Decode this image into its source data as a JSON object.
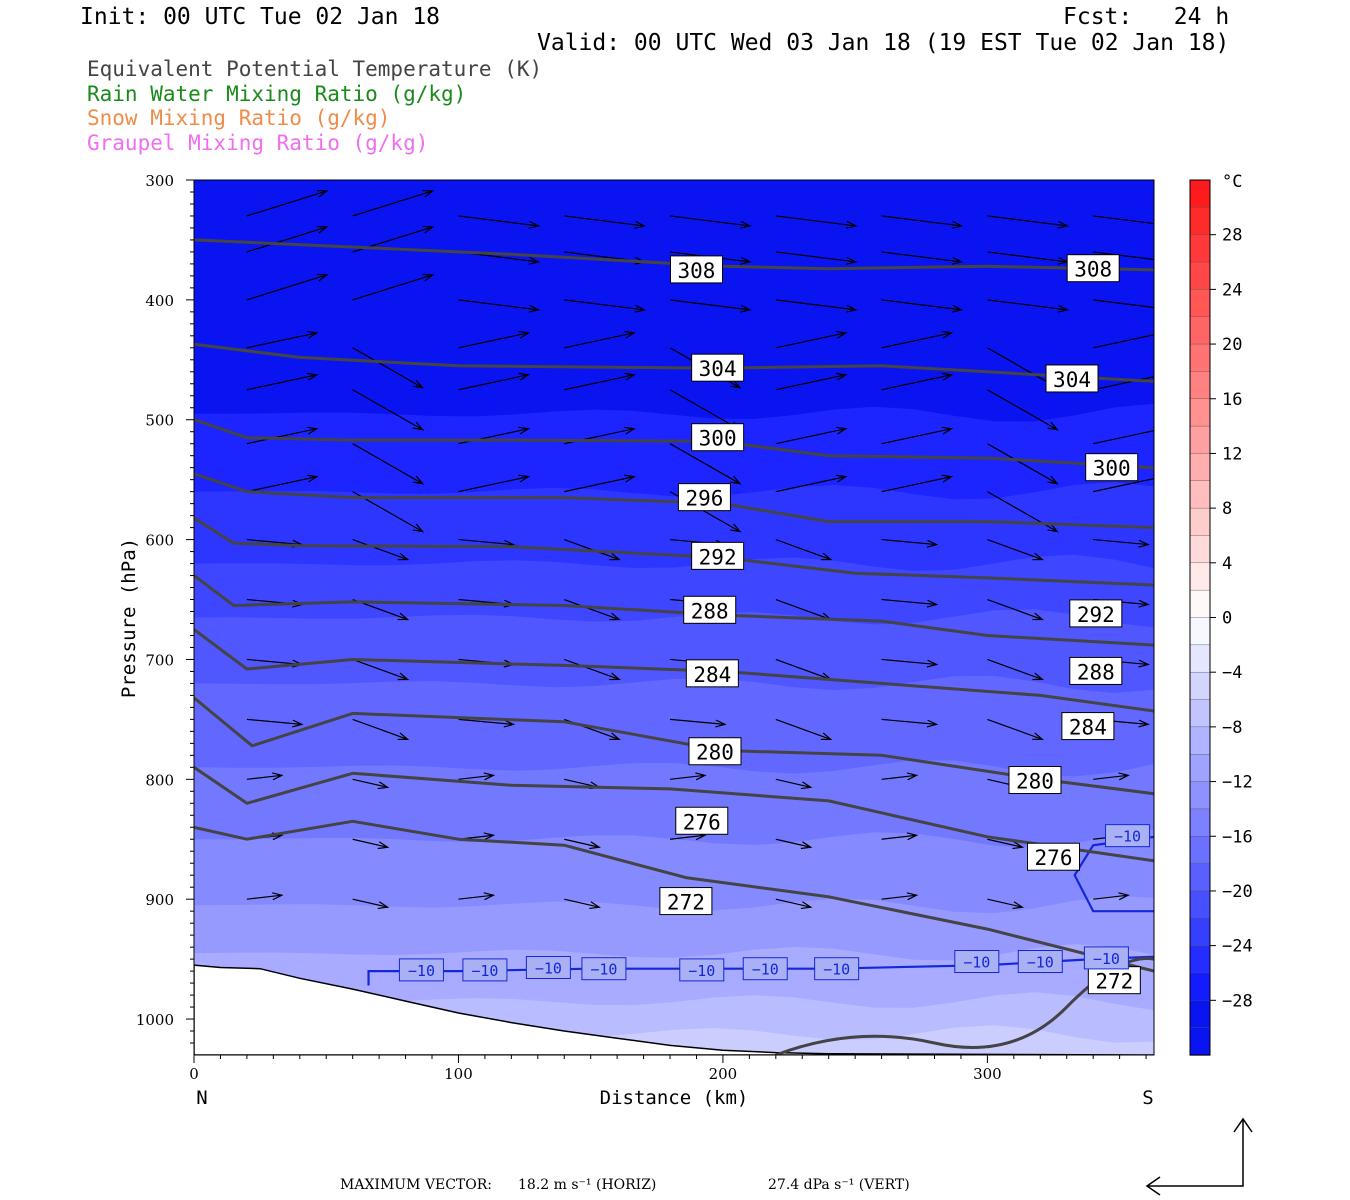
{
  "header": {
    "init": "Init: 00 UTC Tue 02 Jan 18",
    "fcst": "Fcst:   24 h",
    "valid": "Valid: 00 UTC Wed 03 Jan 18 (19 EST Tue 02 Jan 18)"
  },
  "legend": [
    {
      "label": "Equivalent Potential Temperature (K)",
      "color": "#444444"
    },
    {
      "label": "Rain Water Mixing Ratio (g/kg)",
      "color": "#1a8a1a"
    },
    {
      "label": "Snow Mixing Ratio (g/kg)",
      "color": "#ef8c4a"
    },
    {
      "label": "Graupel Mixing Ratio (g/kg)",
      "color": "#f06ef0"
    }
  ],
  "footer": {
    "label": "MAXIMUM VECTOR:",
    "horiz": "18.2 m s⁻¹ (HORIZ)",
    "vert": "27.4 dPa s⁻¹ (VERT)"
  },
  "chart_data": {
    "type": "heatmap",
    "xlabel": "Distance (km)",
    "ylabel": "Pressure (hPa)",
    "xlim": [
      0,
      363
    ],
    "ylim": [
      1030,
      300
    ],
    "x_ticks": [
      0,
      100,
      200,
      300
    ],
    "y_ticks": [
      300,
      400,
      500,
      600,
      700,
      800,
      900,
      1000
    ],
    "x_endpoints": {
      "left": "N",
      "right": "S"
    },
    "colorbar": {
      "unit": "°C",
      "ticks": [
        28,
        24,
        20,
        16,
        12,
        8,
        4,
        0,
        -4,
        -8,
        -12,
        -16,
        -20,
        -24,
        -28
      ]
    },
    "contour_labels": [
      "308",
      "304",
      "300",
      "296",
      "292",
      "288",
      "284",
      "280",
      "276",
      "272"
    ],
    "theta_e_contours": [
      {
        "level": 308,
        "label_points": [
          [
            190,
            375
          ],
          [
            340,
            374
          ]
        ]
      },
      {
        "level": 304,
        "label_points": [
          [
            198,
            457
          ],
          [
            332,
            466
          ]
        ]
      },
      {
        "level": 300,
        "label_points": [
          [
            198,
            515
          ],
          [
            347,
            540
          ]
        ]
      },
      {
        "level": 296,
        "label_points": [
          [
            193,
            565
          ]
        ]
      },
      {
        "level": 292,
        "label_points": [
          [
            198,
            614
          ],
          [
            341,
            662
          ]
        ]
      },
      {
        "level": 288,
        "label_points": [
          [
            195,
            659
          ],
          [
            341,
            710
          ]
        ]
      },
      {
        "level": 284,
        "label_points": [
          [
            196,
            712
          ],
          [
            338,
            756
          ]
        ]
      },
      {
        "level": 280,
        "label_points": [
          [
            197,
            777
          ],
          [
            318,
            801
          ]
        ]
      },
      {
        "level": 276,
        "label_points": [
          [
            192,
            835
          ],
          [
            325,
            865
          ]
        ]
      },
      {
        "level": 272,
        "label_points": [
          [
            186,
            902
          ],
          [
            348,
            968
          ]
        ]
      }
    ],
    "temperature_contour": {
      "level": -10,
      "label": "−10",
      "label_points": [
        [
          86,
          959
        ],
        [
          110,
          959
        ],
        [
          134,
          957
        ],
        [
          155,
          958
        ],
        [
          192,
          959
        ],
        [
          216,
          958
        ],
        [
          243,
          958
        ],
        [
          296,
          952
        ],
        [
          320,
          952
        ],
        [
          345,
          949
        ],
        [
          353,
          847
        ]
      ]
    },
    "max_vector": {
      "horiz": "18.2 m s⁻¹",
      "vert": "27.4 dPa s⁻¹"
    }
  }
}
